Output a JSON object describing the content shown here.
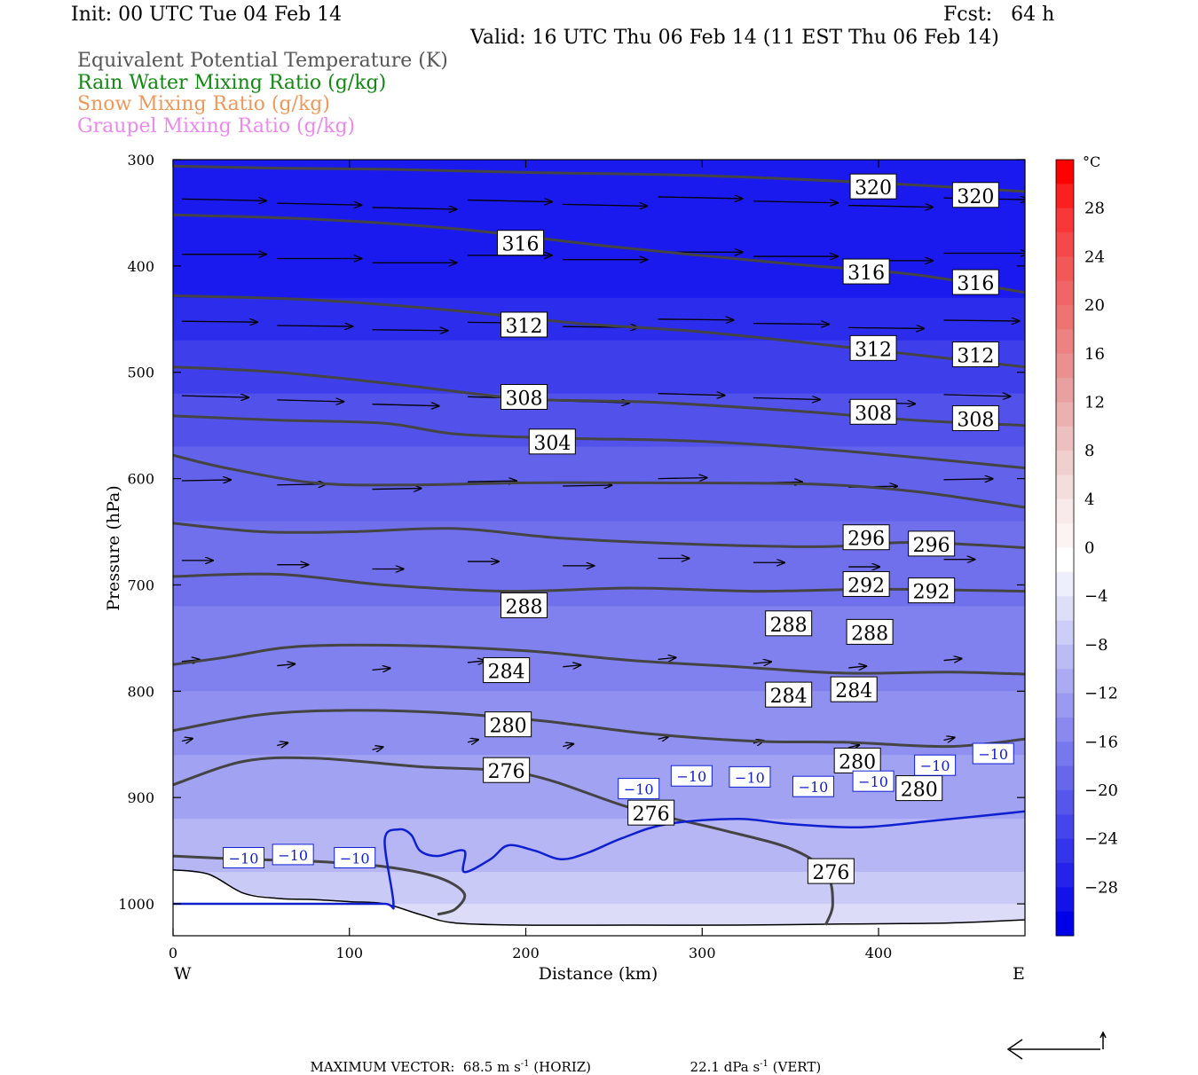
{
  "header": {
    "init": "Init: 00 UTC Tue 04 Feb 14",
    "fcst": "Fcst:   64 h",
    "valid": "Valid: 16 UTC Thu 06 Feb 14 (11 EST Thu 06 Feb 14)",
    "fields": [
      {
        "label": "Equivalent Potential Temperature (K)",
        "color": "#555555"
      },
      {
        "label": "Rain Water Mixing Ratio (g/kg)",
        "color": "#118811"
      },
      {
        "label": "Snow Mixing Ratio (g/kg)",
        "color": "#f0985a"
      },
      {
        "label": "Graupel Mixing Ratio (g/kg)",
        "color": "#ee88ee"
      }
    ]
  },
  "footer": {
    "max_vector": "MAXIMUM VECTOR:  68.5 m s",
    "horiz_exp": "-1",
    "horiz_unit": " (HORIZ)",
    "vert_val": "22.1 dPa s",
    "vert_exp": "-1",
    "vert_unit": " (VERT)"
  },
  "chart_data": {
    "type": "heatmap",
    "title": "",
    "xlabel": "Distance (km)",
    "ylabel": "Pressure (hPa)",
    "xlim": [
      0,
      483
    ],
    "ylim": [
      300,
      1030
    ],
    "x_ticks": [
      0,
      100,
      200,
      300,
      400
    ],
    "y_ticks": [
      300,
      400,
      500,
      600,
      700,
      800,
      900,
      1000
    ],
    "x_left_label": "W",
    "x_right_label": "E",
    "colorbar": {
      "unit": "°C",
      "labels": [
        "28",
        "24",
        "20",
        "16",
        "12",
        "8",
        "4",
        "0",
        "−4",
        "−8",
        "−12",
        "−16",
        "−20",
        "−24",
        "−28"
      ],
      "label_values": [
        28,
        24,
        20,
        16,
        12,
        8,
        4,
        0,
        -4,
        -8,
        -12,
        -16,
        -20,
        -24,
        -28
      ],
      "bounds": [
        32,
        30,
        28,
        26,
        24,
        22,
        20,
        18,
        16,
        14,
        12,
        10,
        8,
        6,
        4,
        2,
        0,
        -2,
        -4,
        -6,
        -8,
        -10,
        -12,
        -14,
        -16,
        -18,
        -20,
        -22,
        -24,
        -26,
        -28,
        -30,
        -32
      ],
      "colors": [
        "#ff0000",
        "#fb2020",
        "#f83838",
        "#f54848",
        "#f25858",
        "#f06666",
        "#ee7474",
        "#ec8282",
        "#ea9090",
        "#e9a0a0",
        "#ebb0b0",
        "#edc0c0",
        "#f0cfcf",
        "#f4dddd",
        "#f8eaea",
        "#fcf4f4",
        "#ffffff",
        "#eeeefc",
        "#dedef9",
        "#cdcdf7",
        "#bcbcf5",
        "#ababf3",
        "#9a9af1",
        "#8989ef",
        "#7878ee",
        "#6767ec",
        "#5656eb",
        "#4545eb",
        "#3434ea",
        "#2323ea",
        "#1212e9",
        "#0000e8"
      ]
    },
    "theta_e_contours": [
      {
        "level": 320,
        "points": [
          [
            0,
            306
          ],
          [
            60,
            308
          ],
          [
            120,
            309
          ],
          [
            200,
            312
          ],
          [
            300,
            315
          ],
          [
            400,
            322
          ],
          [
            483,
            330
          ]
        ],
        "labels": [
          [
            397,
            326
          ],
          [
            455,
            334
          ]
        ]
      },
      {
        "level": 316,
        "points": [
          [
            0,
            352
          ],
          [
            80,
            356
          ],
          [
            160,
            365
          ],
          [
            250,
            382
          ],
          [
            350,
            398
          ],
          [
            420,
            408
          ],
          [
            483,
            425
          ]
        ],
        "labels": [
          [
            197,
            379
          ],
          [
            393,
            406
          ],
          [
            455,
            416
          ]
        ]
      },
      {
        "level": 312,
        "points": [
          [
            0,
            428
          ],
          [
            80,
            432
          ],
          [
            160,
            442
          ],
          [
            230,
            454
          ],
          [
            300,
            462
          ],
          [
            380,
            476
          ],
          [
            483,
            495
          ]
        ],
        "labels": [
          [
            199,
            456
          ],
          [
            397,
            478
          ],
          [
            455,
            484
          ]
        ]
      },
      {
        "level": 308,
        "points": [
          [
            0,
            495
          ],
          [
            60,
            500
          ],
          [
            130,
            512
          ],
          [
            200,
            525
          ],
          [
            270,
            528
          ],
          [
            350,
            536
          ],
          [
            420,
            545
          ],
          [
            483,
            550
          ]
        ],
        "labels": [
          [
            199,
            524
          ],
          [
            397,
            538
          ],
          [
            455,
            544
          ]
        ]
      },
      {
        "level": 304,
        "points": [
          [
            0,
            541
          ],
          [
            60,
            545
          ],
          [
            120,
            548
          ],
          [
            160,
            558
          ],
          [
            220,
            562
          ],
          [
            300,
            565
          ],
          [
            380,
            574
          ],
          [
            483,
            590
          ]
        ],
        "labels": [
          [
            215,
            566
          ]
        ]
      },
      {
        "level": 300,
        "points": [
          [
            0,
            578
          ],
          [
            30,
            590
          ],
          [
            80,
            604
          ],
          [
            130,
            606
          ],
          [
            200,
            604
          ],
          [
            270,
            604
          ],
          [
            360,
            605
          ],
          [
            420,
            612
          ],
          [
            483,
            627
          ]
        ],
        "labels": []
      },
      {
        "level": 296,
        "points": [
          [
            0,
            642
          ],
          [
            50,
            650
          ],
          [
            100,
            650
          ],
          [
            160,
            647
          ],
          [
            220,
            656
          ],
          [
            300,
            662
          ],
          [
            370,
            664
          ],
          [
            420,
            660
          ],
          [
            483,
            665
          ]
        ],
        "labels": [
          [
            393,
            656
          ],
          [
            430,
            662
          ]
        ]
      },
      {
        "level": 292,
        "points": [
          [
            0,
            692
          ],
          [
            60,
            690
          ],
          [
            120,
            700
          ],
          [
            190,
            706
          ],
          [
            260,
            703
          ],
          [
            330,
            706
          ],
          [
            400,
            704
          ],
          [
            483,
            706
          ]
        ],
        "labels": [
          [
            393,
            700
          ],
          [
            430,
            706
          ]
        ]
      },
      {
        "level": 288,
        "points": [
          [
            0,
            775
          ],
          [
            30,
            768
          ],
          [
            70,
            758
          ],
          [
            130,
            757
          ],
          [
            200,
            762
          ],
          [
            260,
            771
          ],
          [
            320,
            777
          ],
          [
            380,
            783
          ],
          [
            440,
            782
          ],
          [
            483,
            784
          ]
        ],
        "labels": [
          [
            199,
            720
          ],
          [
            349,
            737
          ],
          [
            395,
            745
          ]
        ]
      },
      {
        "level": 284,
        "points": [
          [
            0,
            837
          ],
          [
            50,
            822
          ],
          [
            100,
            818
          ],
          [
            150,
            820
          ],
          [
            210,
            828
          ],
          [
            270,
            840
          ],
          [
            330,
            847
          ],
          [
            380,
            848
          ],
          [
            440,
            852
          ],
          [
            483,
            845
          ]
        ],
        "labels": [
          [
            189,
            781
          ],
          [
            349,
            804
          ],
          [
            386,
            799
          ]
        ]
      },
      {
        "level": 280,
        "points": [
          [
            0,
            888
          ],
          [
            40,
            866
          ],
          [
            80,
            863
          ],
          [
            140,
            871
          ],
          [
            200,
            878
          ],
          [
            260,
            910
          ],
          [
            310,
            930
          ],
          [
            350,
            948
          ],
          [
            370,
            970
          ],
          [
            374,
            1000
          ],
          [
            370,
            1020
          ]
        ],
        "labels": [
          [
            190,
            832
          ],
          [
            388,
            866
          ],
          [
            423,
            892
          ]
        ]
      },
      {
        "level": 276,
        "points": [
          [
            0,
            955
          ],
          [
            40,
            958
          ],
          [
            80,
            960
          ],
          [
            120,
            965
          ],
          [
            150,
            975
          ],
          [
            165,
            990
          ],
          [
            160,
            1005
          ],
          [
            150,
            1010
          ]
        ],
        "labels": [
          [
            189,
            875
          ],
          [
            271,
            915
          ],
          [
            373,
            970
          ]
        ]
      }
    ],
    "minus10C_isotherm": {
      "level": -10,
      "points": [
        [
          0,
          1000
        ],
        [
          30,
          1000
        ],
        [
          90,
          1000
        ],
        [
          120,
          1000
        ],
        [
          125,
          1000
        ],
        [
          120,
          940
        ],
        [
          128,
          930
        ],
        [
          135,
          935
        ],
        [
          140,
          950
        ],
        [
          150,
          955
        ],
        [
          165,
          950
        ],
        [
          165,
          970
        ],
        [
          180,
          958
        ],
        [
          190,
          945
        ],
        [
          205,
          950
        ],
        [
          220,
          958
        ],
        [
          235,
          952
        ],
        [
          255,
          938
        ],
        [
          280,
          925
        ],
        [
          320,
          920
        ],
        [
          350,
          925
        ],
        [
          390,
          928
        ],
        [
          430,
          922
        ],
        [
          483,
          913
        ]
      ],
      "labels": [
        [
          40,
          957
        ],
        [
          68,
          954
        ],
        [
          103,
          957
        ],
        [
          264,
          892
        ],
        [
          294,
          880
        ],
        [
          327,
          881
        ],
        [
          363,
          890
        ],
        [
          397,
          885
        ],
        [
          432,
          870
        ],
        [
          465,
          859
        ]
      ]
    },
    "wind_vectors": [
      {
        "row_p": 340,
        "arrows": "horizontal, strong westerly"
      },
      {
        "row_p": 600,
        "arrows": "horizontal, moderate westerly"
      },
      {
        "row_p": 800,
        "arrows": "weak, northeastward near surface"
      }
    ]
  }
}
